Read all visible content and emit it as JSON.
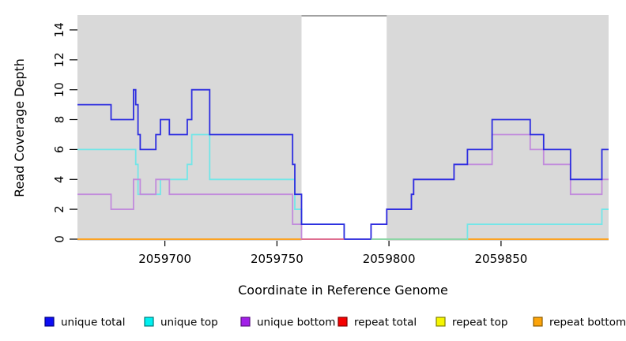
{
  "figure": {
    "background": "#FFFFFF",
    "text_color": "#000000"
  },
  "chart_data": {
    "type": "line",
    "subtype": "step",
    "title": "",
    "xlabel": "Coordinate in Reference Genome",
    "ylabel": "Read Coverage Depth",
    "xlim": [
      2059661,
      2059898
    ],
    "ylim": [
      0,
      15
    ],
    "x_ticks": [
      2059700,
      2059750,
      2059800,
      2059850
    ],
    "y_ticks": [
      0,
      2,
      4,
      6,
      8,
      10,
      12,
      14
    ],
    "grid": false,
    "legend_position": "bottom",
    "panel": {
      "fill": "#D9D9D9",
      "white_band": {
        "from": 2059761,
        "to": 2059799
      },
      "band_top_border": "#999999"
    },
    "series": [
      {
        "name": "unique total",
        "color": "#2D2DE0",
        "swatch": "#0D0DF5",
        "swatch_border": "#000080",
        "steps": [
          [
            2059661,
            9
          ],
          [
            2059676,
            8
          ],
          [
            2059686,
            10
          ],
          [
            2059687,
            9
          ],
          [
            2059688,
            7
          ],
          [
            2059689,
            6
          ],
          [
            2059696,
            7
          ],
          [
            2059698,
            8
          ],
          [
            2059702,
            7
          ],
          [
            2059710,
            8
          ],
          [
            2059712,
            10
          ],
          [
            2059720,
            7
          ],
          [
            2059757,
            5
          ],
          [
            2059758,
            3
          ],
          [
            2059761,
            1
          ],
          [
            2059780,
            0
          ],
          [
            2059792,
            1
          ],
          [
            2059799,
            2
          ],
          [
            2059810,
            3
          ],
          [
            2059811,
            4
          ],
          [
            2059829,
            5
          ],
          [
            2059835,
            6
          ],
          [
            2059846,
            8
          ],
          [
            2059863,
            7
          ],
          [
            2059869,
            6
          ],
          [
            2059881,
            4
          ],
          [
            2059895,
            6
          ]
        ]
      },
      {
        "name": "unique top",
        "color": "#72E6E8",
        "swatch": "#00F0F0",
        "swatch_border": "#007A7A",
        "steps": [
          [
            2059661,
            6
          ],
          [
            2059687,
            5
          ],
          [
            2059688,
            3
          ],
          [
            2059698,
            4
          ],
          [
            2059710,
            5
          ],
          [
            2059712,
            7
          ],
          [
            2059720,
            4
          ],
          [
            2059758,
            2
          ],
          [
            2059761,
            1
          ],
          [
            2059780,
            0
          ],
          [
            2059835,
            1
          ],
          [
            2059895,
            2
          ]
        ]
      },
      {
        "name": "unique bottom",
        "color": "#C18BDC",
        "swatch": "#A21FE8",
        "swatch_border": "#5A1080",
        "steps": [
          [
            2059661,
            3
          ],
          [
            2059676,
            2
          ],
          [
            2059686,
            4
          ],
          [
            2059689,
            3
          ],
          [
            2059696,
            4
          ],
          [
            2059702,
            3
          ],
          [
            2059757,
            1
          ],
          [
            2059761,
            0
          ],
          [
            2059792,
            1
          ],
          [
            2059799,
            2
          ],
          [
            2059810,
            3
          ],
          [
            2059811,
            4
          ],
          [
            2059829,
            5
          ],
          [
            2059846,
            7
          ],
          [
            2059863,
            6
          ],
          [
            2059869,
            5
          ],
          [
            2059881,
            3
          ],
          [
            2059895,
            4
          ]
        ]
      },
      {
        "name": "repeat total",
        "color": "#DC3344",
        "swatch": "#F50000",
        "swatch_border": "#800000",
        "steps": [
          [
            2059661,
            0
          ]
        ]
      },
      {
        "name": "repeat top",
        "color": "#E8E84A",
        "swatch": "#F5F500",
        "swatch_border": "#808000",
        "steps": [
          [
            2059661,
            0
          ]
        ]
      },
      {
        "name": "repeat bottom",
        "color": "#FF9E1E",
        "swatch": "#FCA40A",
        "swatch_border": "#8A5A00",
        "steps": [
          [
            2059661,
            0
          ]
        ]
      }
    ],
    "zero_overlays": [
      {
        "from": 2059761,
        "to": 2059780,
        "color": "#E0688C"
      },
      {
        "from": 2059792,
        "to": 2059835,
        "color": "#8CD6A4"
      }
    ]
  }
}
